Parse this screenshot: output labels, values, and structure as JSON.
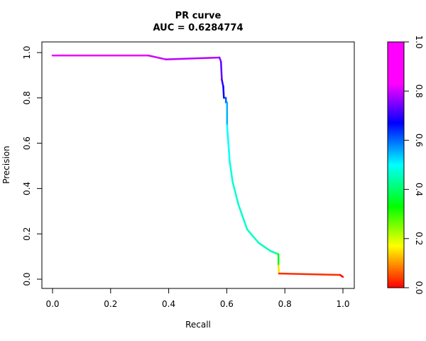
{
  "chart_data": {
    "type": "line",
    "title": "PR curve",
    "subtitle": "AUC = 0.6284774",
    "xlabel": "Recall",
    "ylabel": "Precision",
    "xlim": [
      0,
      1
    ],
    "ylim": [
      0,
      1
    ],
    "x_ticks": [
      "0.0",
      "0.2",
      "0.4",
      "0.6",
      "0.8",
      "1.0"
    ],
    "y_ticks": [
      "0.0",
      "0.2",
      "0.4",
      "0.6",
      "0.8",
      "1.0"
    ],
    "grid": false,
    "colorbar": {
      "ticks": [
        "0.0",
        "0.2",
        "0.4",
        "0.6",
        "0.8",
        "1.0"
      ],
      "range": [
        0,
        1
      ],
      "palette": "rainbow (red at 0 → magenta at 1)"
    },
    "series": [
      {
        "points": [
          [
            0.0,
            0.987,
            1.0
          ],
          [
            0.33,
            0.987,
            0.97
          ],
          [
            0.39,
            0.97,
            0.96
          ],
          [
            0.575,
            0.978,
            0.93
          ],
          [
            0.58,
            0.96,
            0.9
          ],
          [
            0.583,
            0.88,
            0.85
          ],
          [
            0.588,
            0.85,
            0.82
          ],
          [
            0.59,
            0.8,
            0.78
          ],
          [
            0.597,
            0.8,
            0.74
          ],
          [
            0.597,
            0.78,
            0.72
          ],
          [
            0.601,
            0.78,
            0.7
          ],
          [
            0.601,
            0.68,
            0.62
          ],
          [
            0.61,
            0.52,
            0.58
          ],
          [
            0.62,
            0.43,
            0.57
          ],
          [
            0.64,
            0.33,
            0.56
          ],
          [
            0.67,
            0.22,
            0.56
          ],
          [
            0.71,
            0.16,
            0.55
          ],
          [
            0.75,
            0.125,
            0.54
          ],
          [
            0.778,
            0.11,
            0.52
          ],
          [
            0.778,
            0.06,
            0.3
          ],
          [
            0.78,
            0.025,
            0.05
          ],
          [
            0.99,
            0.019,
            0.02
          ],
          [
            1.0,
            0.01,
            0.0
          ]
        ]
      }
    ]
  }
}
